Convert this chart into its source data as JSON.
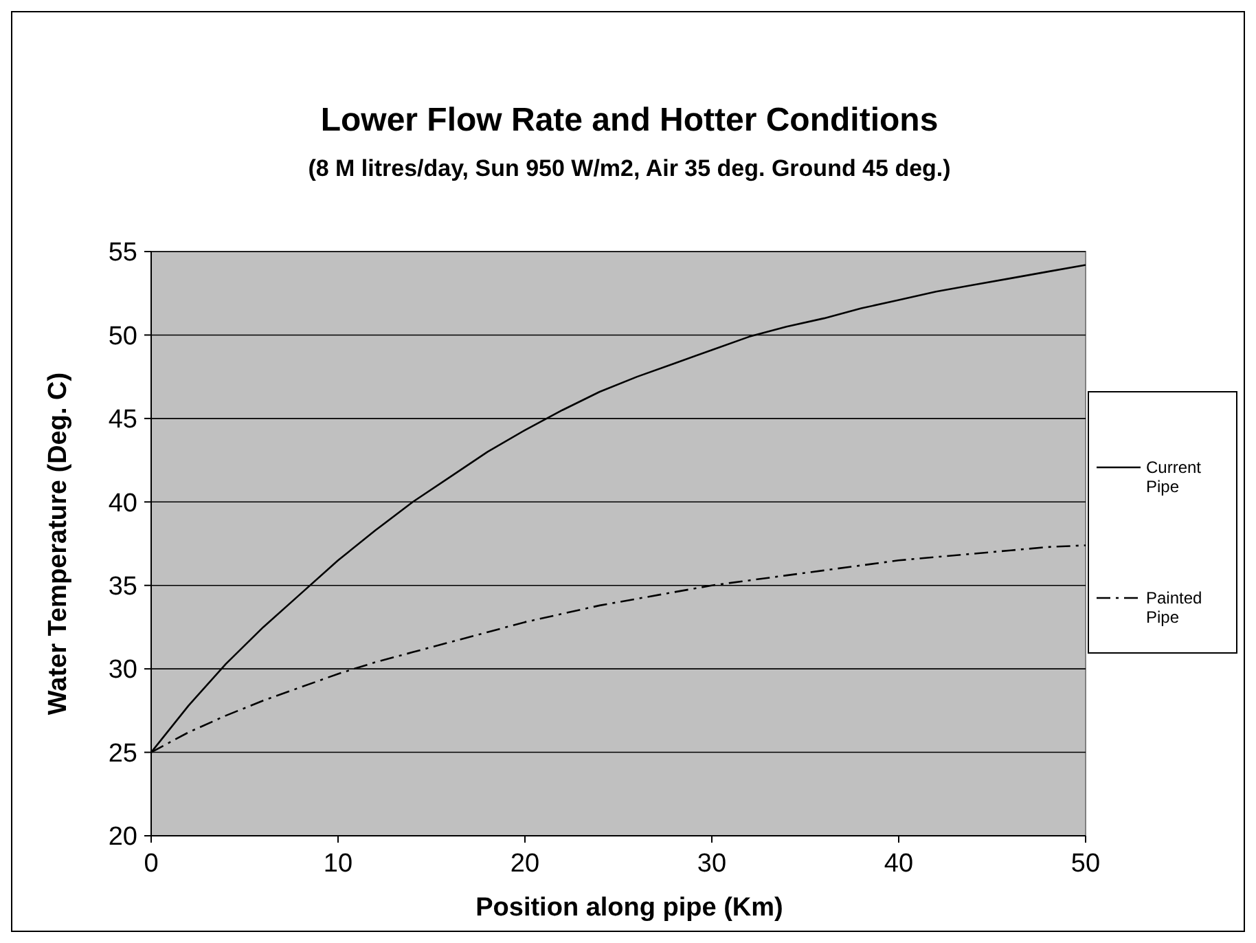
{
  "chart_data": {
    "type": "line",
    "title": "Lower Flow Rate and Hotter Conditions",
    "subtitle": "(8 M litres/day, Sun 950 W/m2, Air 35 deg. Ground 45 deg.)",
    "xlabel": "Position along pipe (Km)",
    "ylabel": "Water Temperature (Deg. C)",
    "x": [
      0,
      2,
      4,
      6,
      8,
      10,
      12,
      14,
      16,
      18,
      20,
      22,
      24,
      26,
      28,
      30,
      32,
      34,
      36,
      38,
      40,
      42,
      44,
      46,
      48,
      50
    ],
    "series": [
      {
        "name": "Current Pipe",
        "color": "#000000",
        "line_style": "solid",
        "values": [
          25,
          27.8,
          30.3,
          32.5,
          34.5,
          36.5,
          38.3,
          40,
          41.5,
          43,
          44.3,
          45.5,
          46.6,
          47.5,
          48.3,
          49.1,
          49.9,
          50.5,
          51,
          51.6,
          52.1,
          52.6,
          53,
          53.4,
          53.8,
          54.2
        ]
      },
      {
        "name": "Painted Pipe",
        "color": "#000000",
        "line_style": "dashed",
        "values": [
          25,
          26.2,
          27.2,
          28.1,
          28.9,
          29.7,
          30.4,
          31,
          31.6,
          32.2,
          32.8,
          33.3,
          33.8,
          34.2,
          34.6,
          35,
          35.3,
          35.6,
          35.9,
          36.2,
          36.5,
          36.7,
          36.9,
          37.1,
          37.3,
          37.4
        ]
      }
    ],
    "xlim": [
      0,
      50
    ],
    "xticks": [
      0,
      10,
      20,
      30,
      40,
      50
    ],
    "ylim": [
      20,
      55
    ],
    "yticks": [
      20,
      25,
      30,
      35,
      40,
      45,
      50,
      55
    ],
    "grid": "y",
    "legend": "right",
    "marker": "none"
  }
}
